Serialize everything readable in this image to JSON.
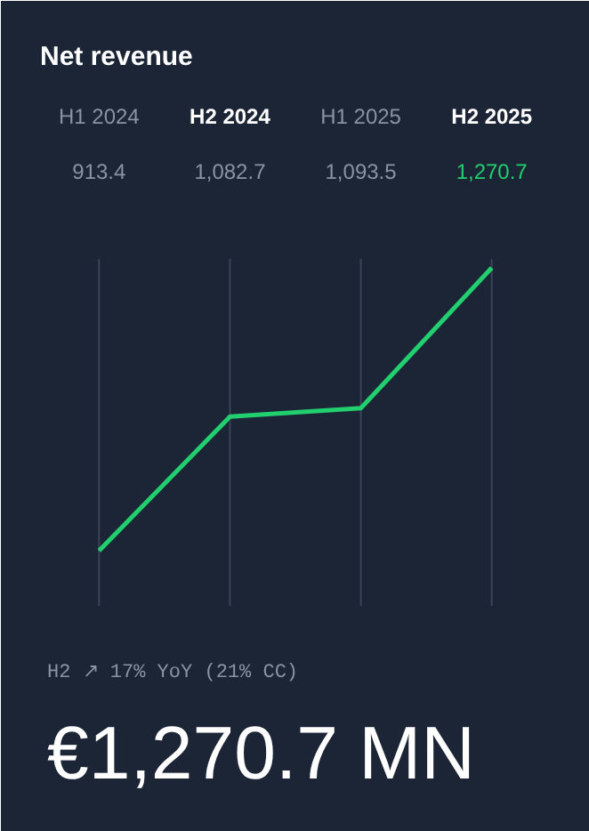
{
  "chart_data": {
    "type": "line",
    "title": "Net revenue",
    "categories": [
      "H1 2024",
      "H2 2024",
      "H1 2025",
      "H2 2025"
    ],
    "series": [
      {
        "color": "#22cf6e",
        "values": [
          913.4,
          1082.7,
          1093.5,
          1270.7
        ],
        "value_labels": [
          "913.4",
          "1,082.7",
          "1,093.5",
          "1,270.7"
        ]
      }
    ],
    "grid": "x",
    "marker": "none",
    "line_style": "solid",
    "annotations": [
      "H2 ↗ 17% YoY (21% CC)",
      "€1,270.7 MN"
    ]
  }
}
